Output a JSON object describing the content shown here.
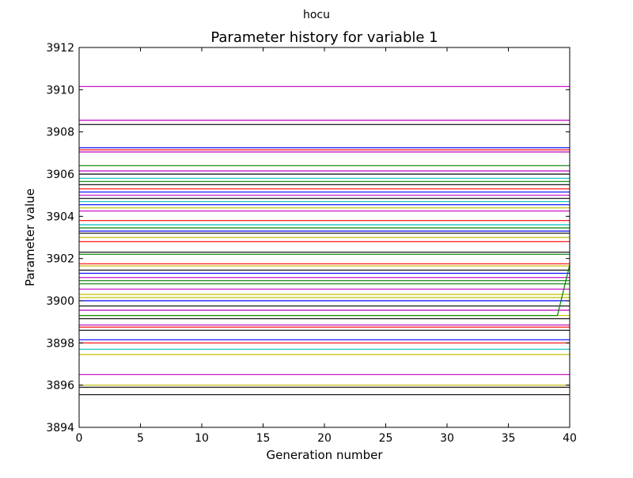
{
  "chart_data": {
    "type": "line",
    "suptitle": "hocu",
    "title": "Parameter history for variable 1",
    "xlabel": "Generation number",
    "ylabel": "Parameter value",
    "xlim": [
      0,
      40
    ],
    "ylim": [
      3894,
      3912
    ],
    "x_ticks": [
      0,
      5,
      10,
      15,
      20,
      25,
      30,
      35,
      40
    ],
    "y_ticks": [
      3894,
      3896,
      3898,
      3900,
      3902,
      3904,
      3906,
      3908,
      3910,
      3912
    ],
    "grid": false,
    "series": [
      {
        "x": [
          0,
          40
        ],
        "values": [
          3910.15,
          3910.15
        ],
        "color": "#bf00bf"
      },
      {
        "x": [
          0,
          40
        ],
        "values": [
          3908.55,
          3908.55
        ],
        "color": "#bf00bf"
      },
      {
        "x": [
          0,
          40
        ],
        "values": [
          3908.35,
          3908.35
        ],
        "color": "#000000"
      },
      {
        "x": [
          0,
          40
        ],
        "values": [
          3907.25,
          3907.25
        ],
        "color": "#0000ff"
      },
      {
        "x": [
          0,
          40
        ],
        "values": [
          3907.15,
          3907.15
        ],
        "color": "#ff0000"
      },
      {
        "x": [
          0,
          40
        ],
        "values": [
          3907.05,
          3907.05
        ],
        "color": "#bf00bf"
      },
      {
        "x": [
          0,
          40
        ],
        "values": [
          3906.4,
          3906.4
        ],
        "color": "#008000"
      },
      {
        "x": [
          0,
          40
        ],
        "values": [
          3906.15,
          3906.15
        ],
        "color": "#bf00bf"
      },
      {
        "x": [
          0,
          40
        ],
        "values": [
          3906.0,
          3906.0
        ],
        "color": "#000000"
      },
      {
        "x": [
          0,
          40
        ],
        "values": [
          3905.8,
          3905.8
        ],
        "color": "#00bfbf"
      },
      {
        "x": [
          0,
          40
        ],
        "values": [
          3905.65,
          3905.65
        ],
        "color": "#008000"
      },
      {
        "x": [
          0,
          40
        ],
        "values": [
          3905.5,
          3905.5
        ],
        "color": "#000000"
      },
      {
        "x": [
          0,
          40
        ],
        "values": [
          3905.3,
          3905.3
        ],
        "color": "#ff0000"
      },
      {
        "x": [
          0,
          40
        ],
        "values": [
          3905.15,
          3905.15
        ],
        "color": "#0000ff"
      },
      {
        "x": [
          0,
          40
        ],
        "values": [
          3905.0,
          3905.0
        ],
        "color": "#bf00bf"
      },
      {
        "x": [
          0,
          40
        ],
        "values": [
          3904.85,
          3904.85
        ],
        "color": "#000000"
      },
      {
        "x": [
          0,
          40
        ],
        "values": [
          3904.7,
          3904.7
        ],
        "color": "#00bfbf"
      },
      {
        "x": [
          0,
          40
        ],
        "values": [
          3904.55,
          3904.55
        ],
        "color": "#0000ff"
      },
      {
        "x": [
          0,
          40
        ],
        "values": [
          3904.4,
          3904.4
        ],
        "color": "#bfbf00"
      },
      {
        "x": [
          0,
          40
        ],
        "values": [
          3904.25,
          3904.25
        ],
        "color": "#bf00bf"
      },
      {
        "x": [
          0,
          40
        ],
        "values": [
          3903.8,
          3903.8
        ],
        "color": "#ff0000"
      },
      {
        "x": [
          0,
          40
        ],
        "values": [
          3903.6,
          3903.6
        ],
        "color": "#00bfbf"
      },
      {
        "x": [
          0,
          40
        ],
        "values": [
          3903.45,
          3903.45
        ],
        "color": "#008000"
      },
      {
        "x": [
          0,
          40
        ],
        "values": [
          3903.3,
          3903.3
        ],
        "color": "#0000ff"
      },
      {
        "x": [
          0,
          40
        ],
        "values": [
          3903.2,
          3903.2
        ],
        "color": "#000000"
      },
      {
        "x": [
          0,
          40
        ],
        "values": [
          3903.0,
          3903.0
        ],
        "color": "#bfbf00"
      },
      {
        "x": [
          0,
          40
        ],
        "values": [
          3902.8,
          3902.8
        ],
        "color": "#ff0000"
      },
      {
        "x": [
          0,
          40
        ],
        "values": [
          3902.3,
          3902.3
        ],
        "color": "#000000"
      },
      {
        "x": [
          0,
          40
        ],
        "values": [
          3902.2,
          3902.2
        ],
        "color": "#008000"
      },
      {
        "x": [
          0,
          40
        ],
        "values": [
          3901.75,
          3901.75
        ],
        "color": "#ff0000"
      },
      {
        "x": [
          0,
          40
        ],
        "values": [
          3901.65,
          3901.65
        ],
        "color": "#bfbf00"
      },
      {
        "x": [
          0,
          40
        ],
        "values": [
          3901.45,
          3901.45
        ],
        "color": "#000000"
      },
      {
        "x": [
          0,
          40
        ],
        "values": [
          3901.3,
          3901.3
        ],
        "color": "#0000ff"
      },
      {
        "x": [
          0,
          40
        ],
        "values": [
          3901.1,
          3901.1
        ],
        "color": "#bf00bf"
      },
      {
        "x": [
          0,
          40
        ],
        "values": [
          3900.95,
          3900.95
        ],
        "color": "#008000"
      },
      {
        "x": [
          0,
          40
        ],
        "values": [
          3900.8,
          3900.8
        ],
        "color": "#008000"
      },
      {
        "x": [
          0,
          40
        ],
        "values": [
          3900.55,
          3900.55
        ],
        "color": "#bf00bf"
      },
      {
        "x": [
          0,
          40
        ],
        "values": [
          3900.3,
          3900.3
        ],
        "color": "#bfbf00"
      },
      {
        "x": [
          0,
          40
        ],
        "values": [
          3900.15,
          3900.15
        ],
        "color": "#bfbf00"
      },
      {
        "x": [
          0,
          40
        ],
        "values": [
          3900.0,
          3900.0
        ],
        "color": "#0000ff"
      },
      {
        "x": [
          0,
          40
        ],
        "values": [
          3899.75,
          3899.75
        ],
        "color": "#000000"
      },
      {
        "x": [
          0,
          40
        ],
        "values": [
          3899.55,
          3899.55
        ],
        "color": "#bf00bf"
      },
      {
        "x": [
          0,
          40
        ],
        "values": [
          3899.3,
          3899.3
        ],
        "color": "#bfbf00"
      },
      {
        "x": [
          0,
          40
        ],
        "values": [
          3899.15,
          3899.15
        ],
        "color": "#000000"
      },
      {
        "x": [
          0,
          40
        ],
        "values": [
          3898.85,
          3898.85
        ],
        "color": "#bf00bf"
      },
      {
        "x": [
          0,
          40
        ],
        "values": [
          3898.75,
          3898.75
        ],
        "color": "#ff0000"
      },
      {
        "x": [
          0,
          40
        ],
        "values": [
          3898.6,
          3898.6
        ],
        "color": "#000000"
      },
      {
        "x": [
          0,
          40
        ],
        "values": [
          3898.15,
          3898.15
        ],
        "color": "#0000ff"
      },
      {
        "x": [
          0,
          40
        ],
        "values": [
          3898.0,
          3898.0
        ],
        "color": "#ff0000"
      },
      {
        "x": [
          0,
          40
        ],
        "values": [
          3897.7,
          3897.7
        ],
        "color": "#00bfbf"
      },
      {
        "x": [
          0,
          40
        ],
        "values": [
          3897.45,
          3897.45
        ],
        "color": "#bfbf00"
      },
      {
        "x": [
          0,
          40
        ],
        "values": [
          3896.5,
          3896.5
        ],
        "color": "#bf00bf"
      },
      {
        "x": [
          0,
          40
        ],
        "values": [
          3896.0,
          3896.0
        ],
        "color": "#bfbf00"
      },
      {
        "x": [
          0,
          40
        ],
        "values": [
          3895.9,
          3895.9
        ],
        "color": "#000000"
      },
      {
        "x": [
          0,
          40
        ],
        "values": [
          3895.55,
          3895.55
        ],
        "color": "#000000"
      },
      {
        "x": [
          0,
          39,
          40
        ],
        "values": [
          3899.3,
          3899.3,
          3901.7
        ],
        "color": "#008000"
      }
    ]
  }
}
